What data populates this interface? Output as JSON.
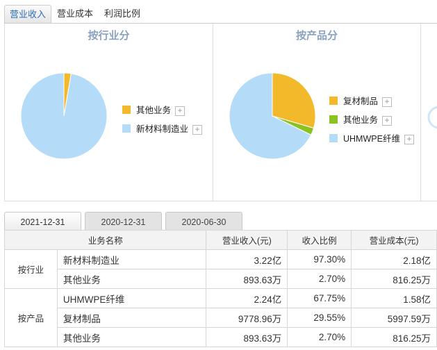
{
  "top_tabs": [
    {
      "label": "营业收入",
      "active": true
    },
    {
      "label": "营业成本",
      "active": false
    },
    {
      "label": "利润比例",
      "active": false
    }
  ],
  "industry_panel": {
    "title": "按行业分",
    "legend": [
      {
        "label": "其他业务",
        "color": "#f2b92b"
      },
      {
        "label": "新材料制造业",
        "color": "#b4dbf7"
      }
    ]
  },
  "product_panel": {
    "title": "按产品分",
    "legend": [
      {
        "label": "复材制品",
        "color": "#f2b92b"
      },
      {
        "label": "其他业务",
        "color": "#8bc121"
      },
      {
        "label": "UHMWPE纤维",
        "color": "#b4dbf7"
      }
    ]
  },
  "chart_data": [
    {
      "type": "pie",
      "title": "按行业分",
      "labels": [
        "其他业务",
        "新材料制造业"
      ],
      "values": [
        2.7,
        97.3
      ],
      "colors": [
        "#f2b92b",
        "#b4dbf7"
      ]
    },
    {
      "type": "pie",
      "title": "按产品分",
      "labels": [
        "复材制品",
        "其他业务",
        "UHMWPE纤维"
      ],
      "values": [
        29.55,
        2.7,
        67.75
      ],
      "colors": [
        "#f2b92b",
        "#8bc121",
        "#b4dbf7"
      ]
    }
  ],
  "period_tabs": [
    {
      "label": "2021-12-31",
      "active": true
    },
    {
      "label": "2020-12-31",
      "active": false
    },
    {
      "label": "2020-06-30",
      "active": false
    }
  ],
  "table": {
    "headers": [
      "业务名称",
      "营业收入(元)",
      "收入比例",
      "营业成本(元)"
    ],
    "groups": [
      {
        "name": "按行业",
        "rows": [
          {
            "name": "新材料制造业",
            "revenue": "3.22亿",
            "ratio": "97.30%",
            "cost": "2.18亿"
          },
          {
            "name": "其他业务",
            "revenue": "893.63万",
            "ratio": "2.70%",
            "cost": "816.25万"
          }
        ]
      },
      {
        "name": "按产品",
        "rows": [
          {
            "name": "UHMWPE纤维",
            "revenue": "2.24亿",
            "ratio": "67.75%",
            "cost": "1.58亿"
          },
          {
            "name": "复材制品",
            "revenue": "9778.96万",
            "ratio": "29.55%",
            "cost": "5997.59万"
          },
          {
            "name": "其他业务",
            "revenue": "893.63万",
            "ratio": "2.70%",
            "cost": "816.25万"
          }
        ]
      }
    ]
  }
}
